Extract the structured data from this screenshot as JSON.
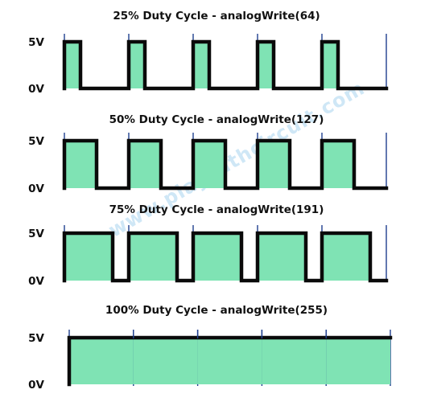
{
  "colors": {
    "fill": "#7fe3b4",
    "signal": "#0a0a0a",
    "grid": "#1f3f8f",
    "watermark": "#cfe7f6"
  },
  "watermark": "www.playwithcircuit.com",
  "diagram": {
    "cycles_per_panel": 5,
    "panels": [
      {
        "title": "25% Duty Cycle - analogWrite(64)",
        "duty": 0.25,
        "high_label": "5V",
        "low_label": "0V"
      },
      {
        "title": "50% Duty Cycle - analogWrite(127)",
        "duty": 0.5,
        "high_label": "5V",
        "low_label": "0V"
      },
      {
        "title": "75% Duty Cycle - analogWrite(191)",
        "duty": 0.75,
        "high_label": "5V",
        "low_label": "0V"
      },
      {
        "title": "100% Duty Cycle - analogWrite(255)",
        "duty": 1.0,
        "high_label": "5V",
        "low_label": "0V"
      }
    ]
  }
}
